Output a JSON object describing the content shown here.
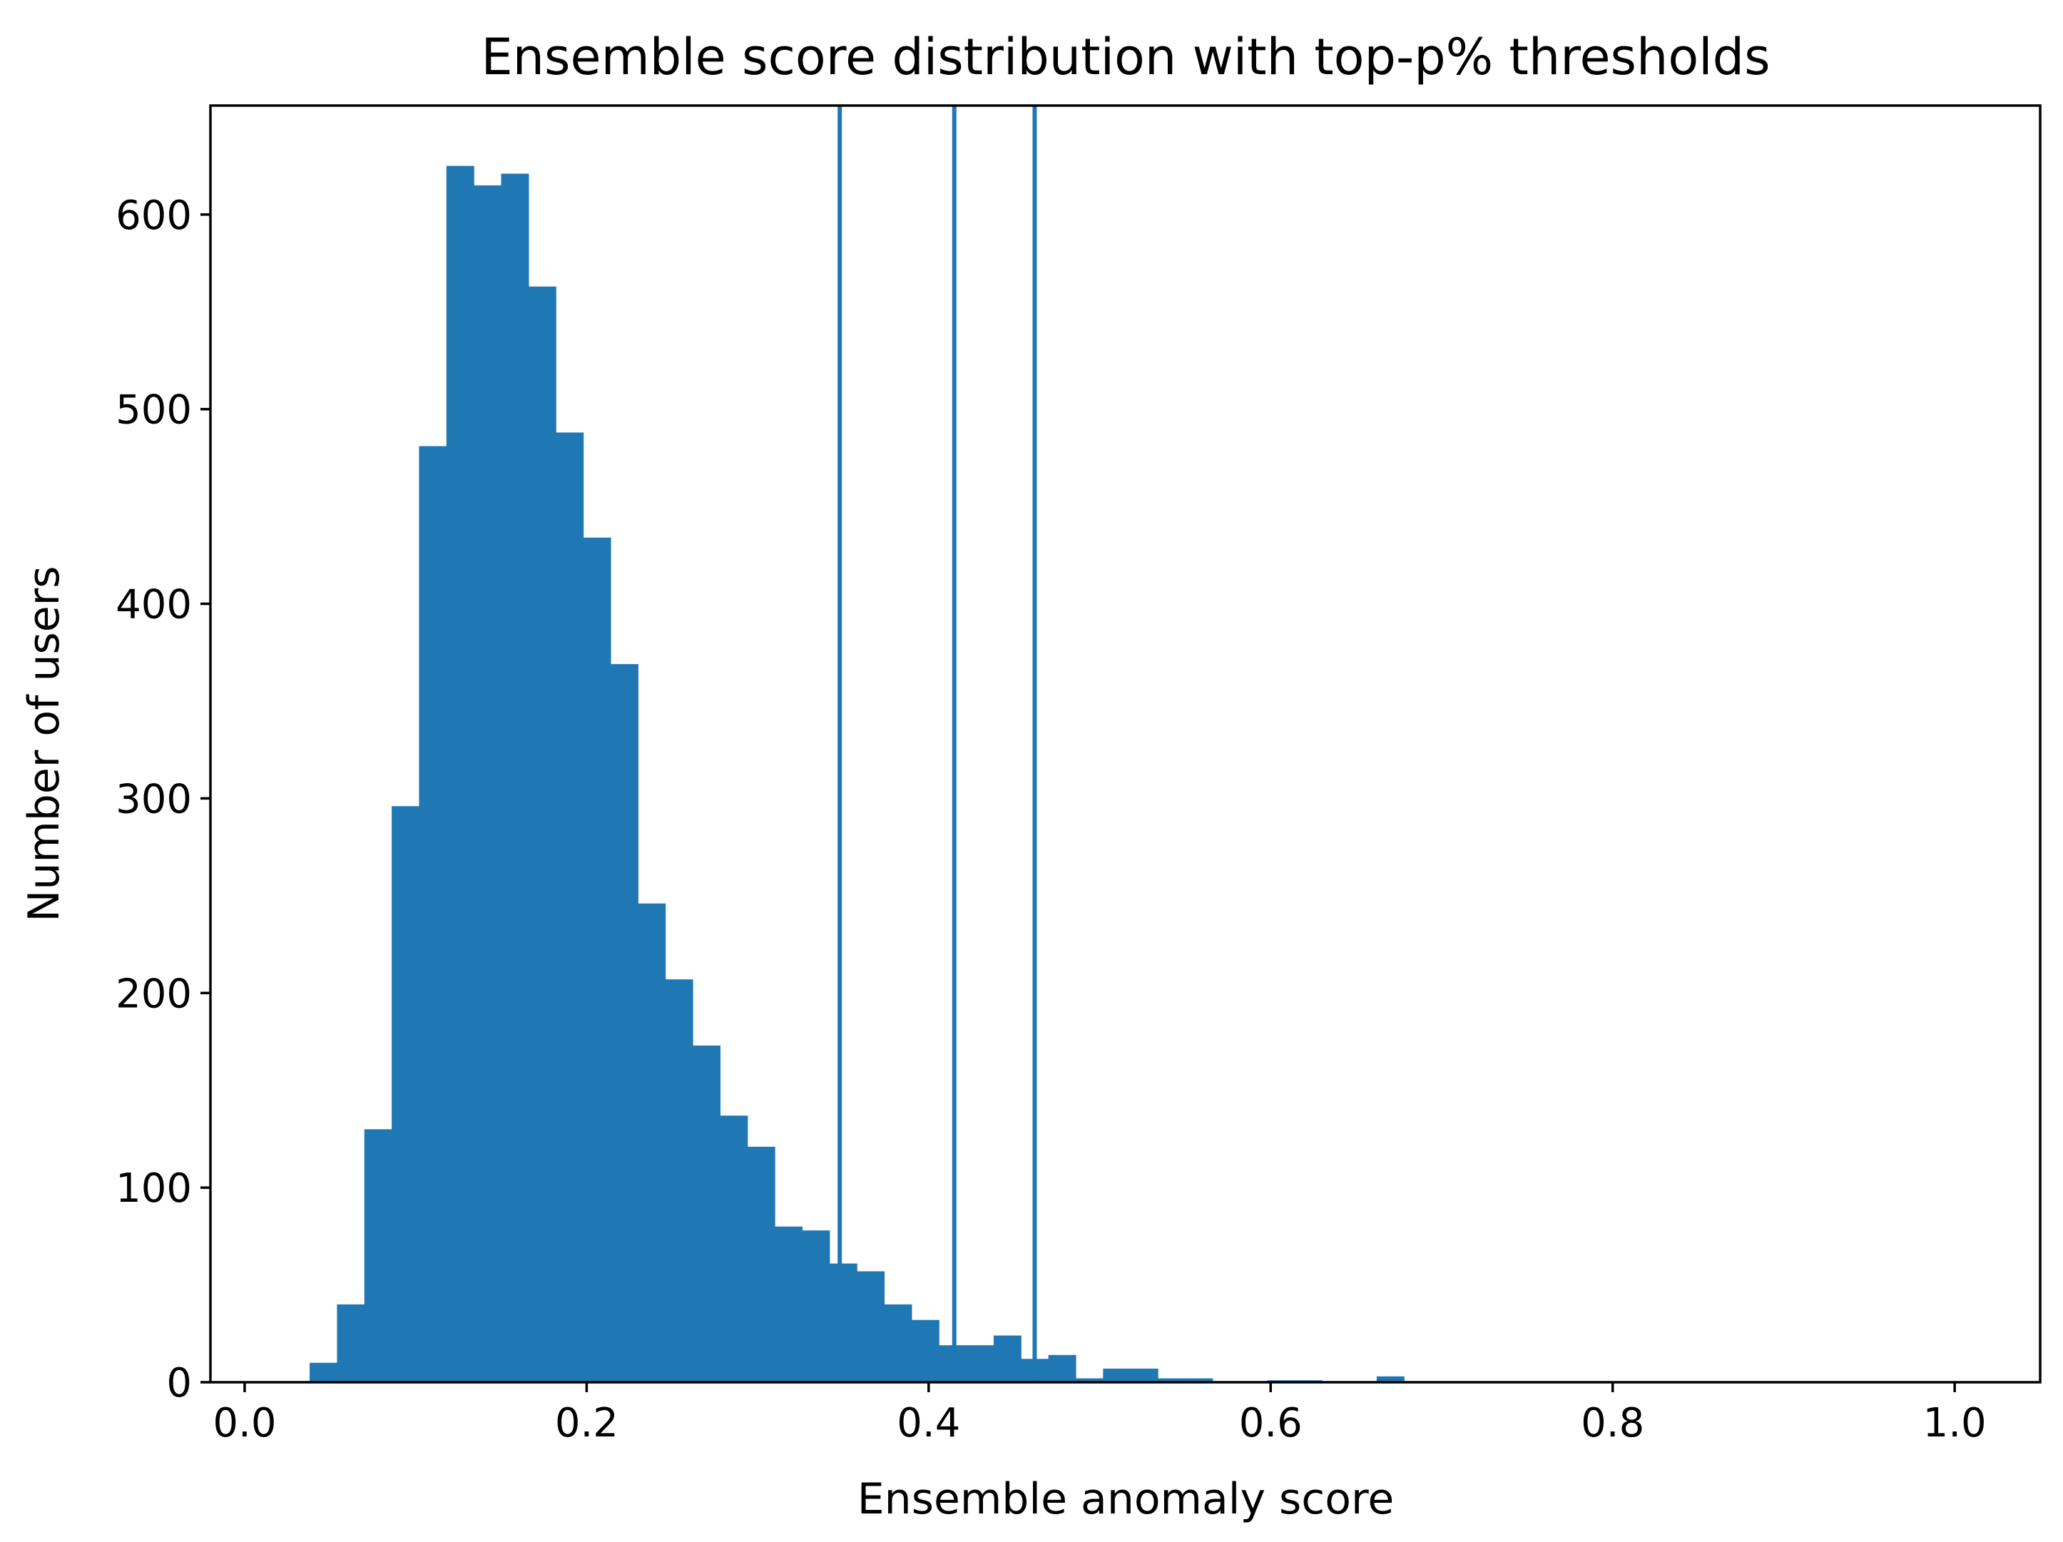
{
  "chart_data": {
    "type": "bar",
    "title": "Ensemble score distribution with top-p% thresholds",
    "xlabel": "Ensemble anomaly score",
    "ylabel": "Number of users",
    "xlim": [
      -0.02,
      1.05
    ],
    "ylim": [
      0,
      656
    ],
    "x_ticks": [
      0.0,
      0.2,
      0.4,
      0.6,
      0.8,
      1.0
    ],
    "x_tick_labels": [
      "0.0",
      "0.2",
      "0.4",
      "0.6",
      "0.8",
      "1.0"
    ],
    "y_ticks": [
      0,
      100,
      200,
      300,
      400,
      500,
      600
    ],
    "y_tick_labels": [
      "0",
      "100",
      "200",
      "300",
      "400",
      "500",
      "600"
    ],
    "bin_width": 0.016,
    "bin_starts": [
      0.038,
      0.054,
      0.07,
      0.086,
      0.102,
      0.118,
      0.134,
      0.15,
      0.166,
      0.182,
      0.198,
      0.214,
      0.23,
      0.246,
      0.262,
      0.278,
      0.294,
      0.31,
      0.326,
      0.342,
      0.358,
      0.374,
      0.39,
      0.406,
      0.422,
      0.438,
      0.454,
      0.47,
      0.486,
      0.502,
      0.518,
      0.534,
      0.55,
      0.598,
      0.614,
      0.662
    ],
    "counts": [
      10,
      40,
      130,
      296,
      481,
      625,
      615,
      621,
      563,
      488,
      434,
      369,
      246,
      207,
      173,
      137,
      121,
      80,
      78,
      61,
      57,
      40,
      32,
      19,
      19,
      24,
      12,
      14,
      2,
      7,
      7,
      2,
      2,
      1,
      1,
      3
    ],
    "thresholds": [
      0.348,
      0.415,
      0.462
    ],
    "grid": false,
    "colors": {
      "bars": "#1f77b4",
      "thresholds": "#1f77b4",
      "axes": "#000000"
    }
  }
}
